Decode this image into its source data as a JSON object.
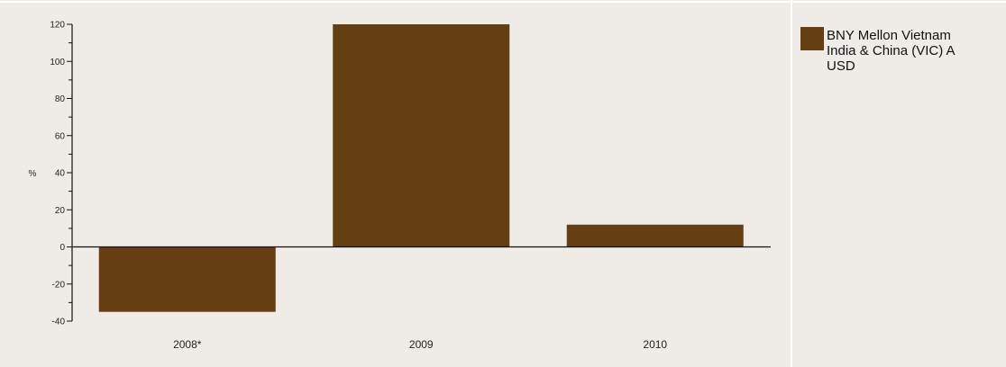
{
  "chart_data": {
    "type": "bar",
    "title": "",
    "xlabel": "",
    "ylabel": "%",
    "categories": [
      "2008*",
      "2009",
      "2010"
    ],
    "series": [
      {
        "name": "BNY Mellon Vietnam India & China (VIC) A USD",
        "values": [
          -35,
          120,
          12
        ],
        "color": "#653f12"
      }
    ],
    "ylim": [
      -40,
      120
    ],
    "yticks": [
      -40,
      -20,
      0,
      20,
      40,
      60,
      80,
      100,
      120
    ],
    "grid": false,
    "legend_position": "top-right"
  },
  "colors": {
    "background": "#efece7",
    "bar": "#653f12",
    "axis": "#111111"
  }
}
